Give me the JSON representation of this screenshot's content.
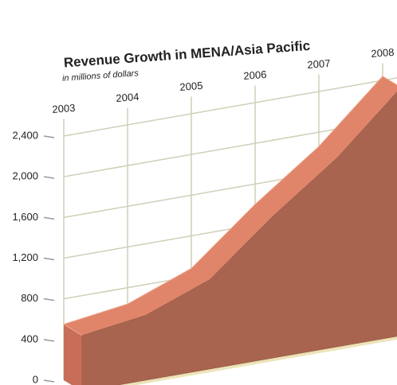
{
  "chart_data": {
    "type": "area",
    "title": "Revenue Growth in MENA/Asia Pacific",
    "subtitle": "in millions of dollars",
    "categories": [
      "2003",
      "2004",
      "2005",
      "2006",
      "2007",
      "2008"
    ],
    "values": [
      550,
      640,
      880,
      1400,
      1860,
      2440
    ],
    "color": "#a8644e",
    "top_color": "#e0846a",
    "ylim": [
      0,
      2400
    ],
    "yticks": [
      0,
      400,
      800,
      {
        "value": 1200,
        "label": "1,200"
      },
      {
        "value": 1600,
        "label": "1,600"
      },
      {
        "value": 2000,
        "label": "2,000"
      },
      {
        "value": 2400,
        "label": "2,400"
      }
    ],
    "grid": true
  }
}
